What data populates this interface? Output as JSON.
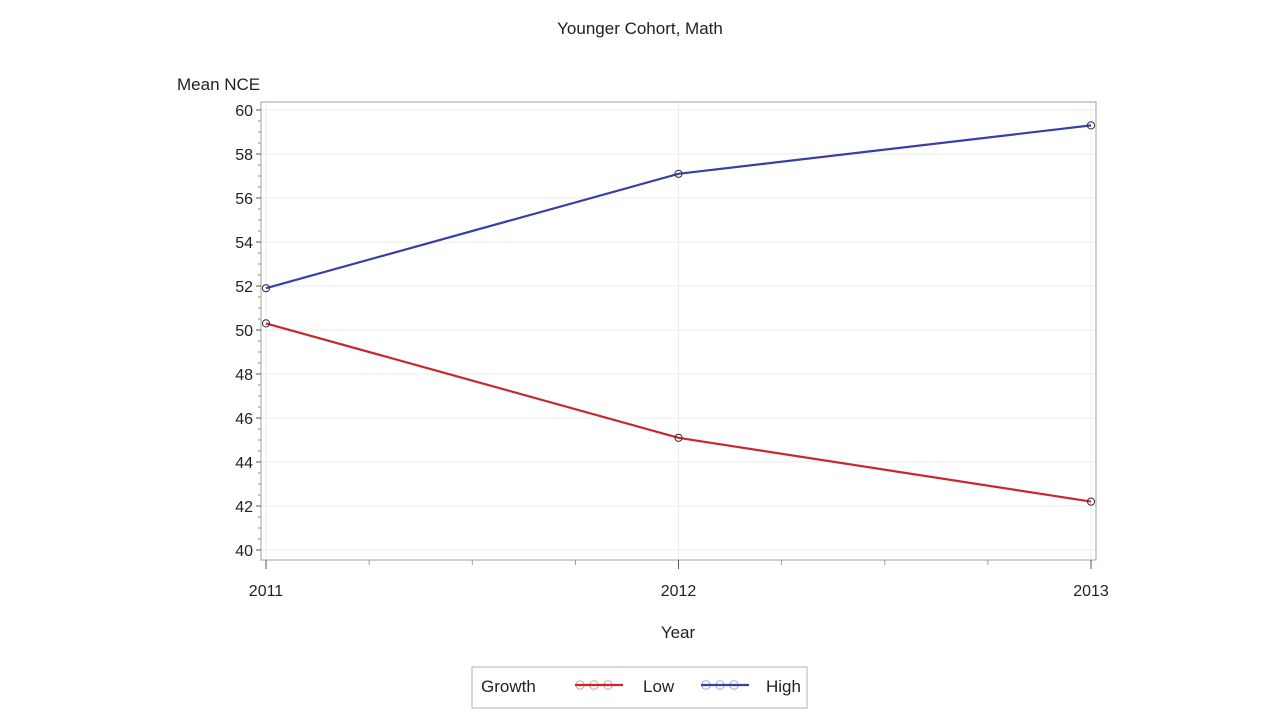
{
  "chart_data": {
    "type": "line",
    "title": "Younger Cohort, Math",
    "xlabel": "Year",
    "ylabel": "Mean NCE",
    "x": [
      2011,
      2012,
      2013
    ],
    "x_tick_labels": [
      "2011",
      "2012",
      "2013"
    ],
    "ylim": [
      40,
      60
    ],
    "y_ticks": [
      40,
      42,
      44,
      46,
      48,
      50,
      52,
      54,
      56,
      58,
      60
    ],
    "y_tick_labels": [
      "40",
      "42",
      "44",
      "46",
      "48",
      "50",
      "52",
      "54",
      "56",
      "58",
      "60"
    ],
    "grid": true,
    "legend": {
      "title": "Growth",
      "placement": "bottom-center"
    },
    "series": [
      {
        "name": "Low",
        "color": "#c8282d",
        "values": [
          50.3,
          45.1,
          42.2
        ]
      },
      {
        "name": "High",
        "color": "#3a3fa8",
        "values": [
          51.9,
          57.1,
          59.3
        ]
      }
    ]
  }
}
